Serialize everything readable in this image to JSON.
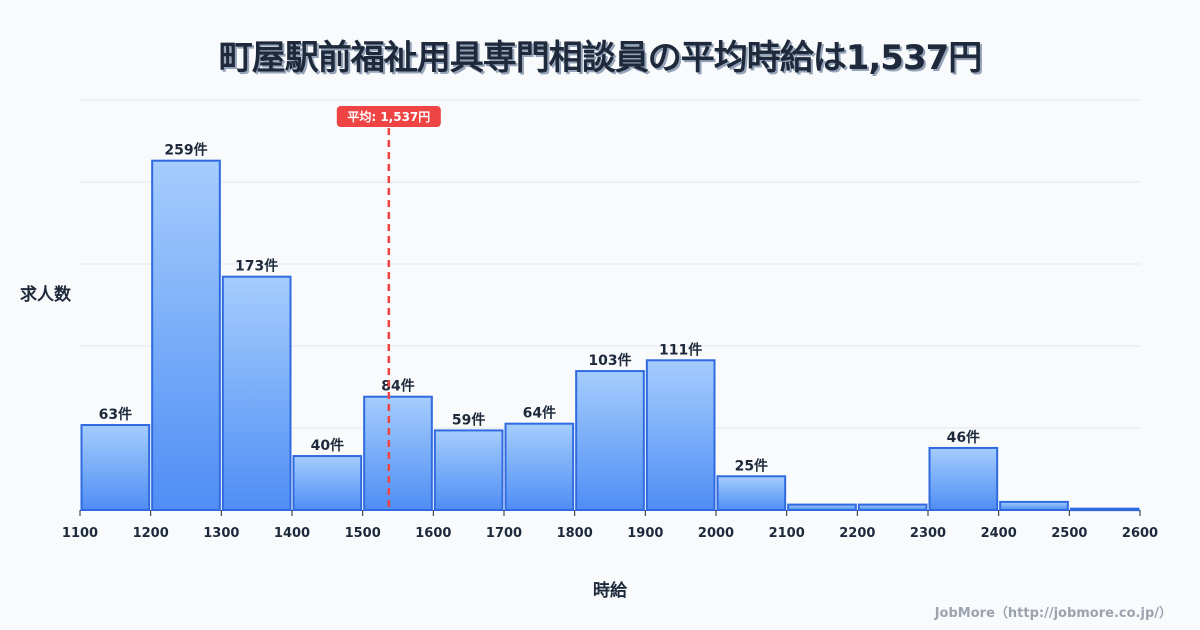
{
  "title": "町屋駅前福祉用具専門相談員の平均時給は1,537円",
  "credit": "JobMore（http://jobmore.co.jp/）",
  "colors": {
    "bar_top": "#a5cdfd",
    "bar_bottom": "#4f8ef5",
    "bar_border": "#2f6ae0",
    "mean_line": "#ef4444",
    "grid": "#e2e8f0"
  },
  "chart_data": {
    "type": "bar",
    "title": "町屋駅前福祉用具専門相談員の平均時給は1,537円",
    "xlabel": "時給",
    "ylabel": "求人数",
    "bins": [
      1100,
      1200,
      1300,
      1400,
      1500,
      1600,
      1700,
      1800,
      1900,
      2000,
      2100,
      2200,
      2300,
      2400,
      2500,
      2600
    ],
    "categories": [
      "1100-1200",
      "1200-1300",
      "1300-1400",
      "1400-1500",
      "1500-1600",
      "1600-1700",
      "1700-1800",
      "1800-1900",
      "1900-2000",
      "2000-2100",
      "2100-2200",
      "2200-2300",
      "2300-2400",
      "2400-2500",
      "2500-2600"
    ],
    "values": [
      63,
      259,
      173,
      40,
      84,
      59,
      64,
      103,
      111,
      25,
      4,
      4,
      46,
      6,
      1
    ],
    "labels": [
      "63件",
      "259件",
      "173件",
      "40件",
      "84件",
      "59件",
      "64件",
      "103件",
      "111件",
      "25件",
      "",
      "",
      "46件",
      "",
      ""
    ],
    "ylim": [
      0,
      304
    ],
    "grid": true,
    "mean": {
      "value": 1537,
      "label": "平均: 1,537円"
    }
  }
}
